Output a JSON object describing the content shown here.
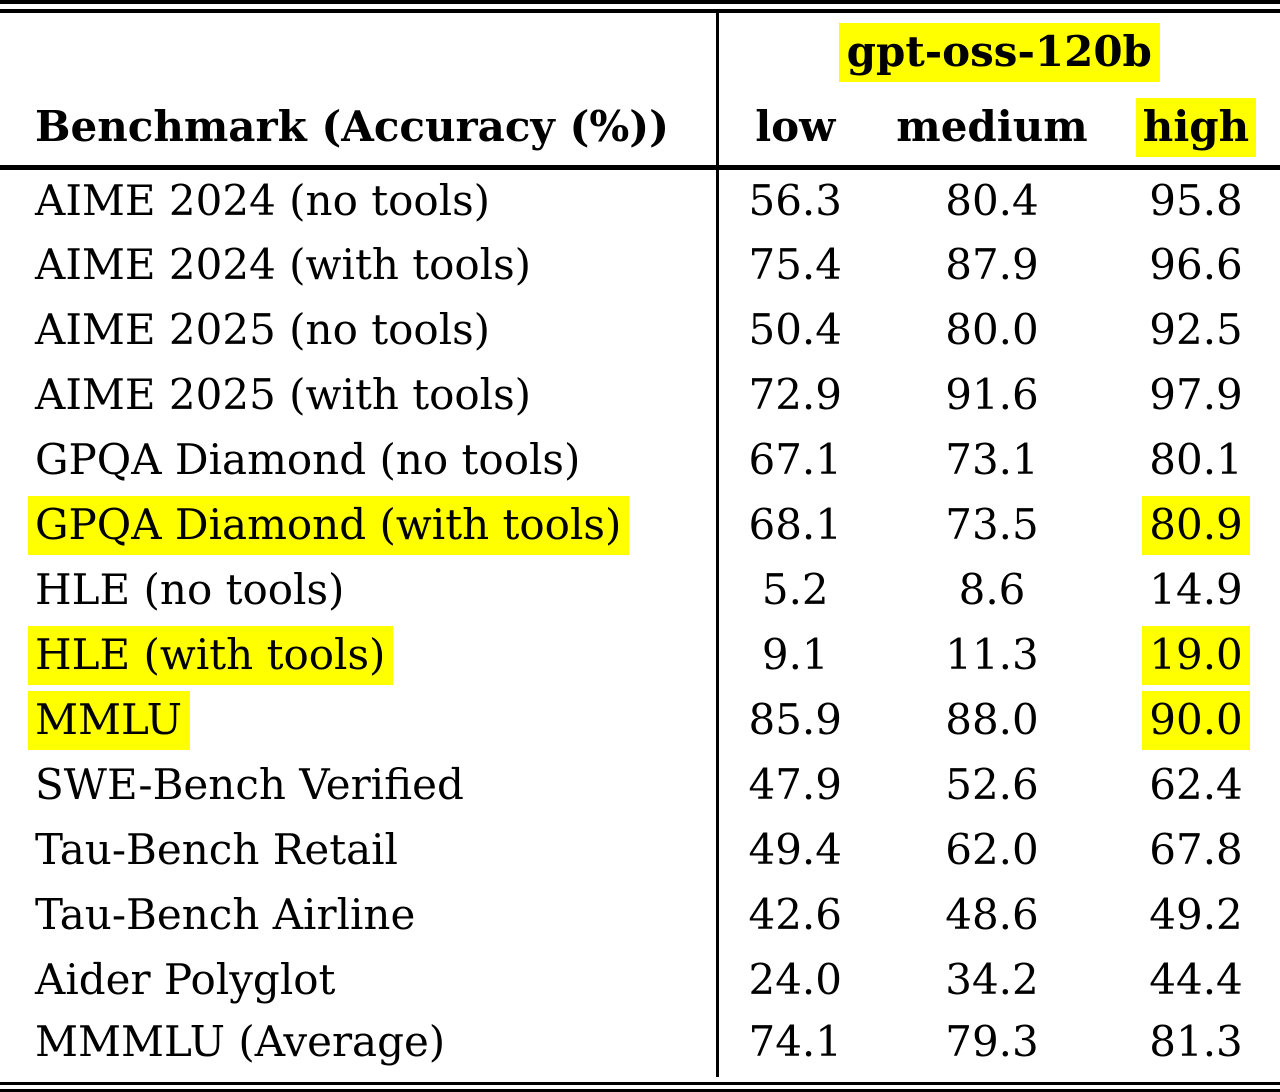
{
  "colors": {
    "highlight": "#ffff00",
    "text": "#000000",
    "background": "#ffffff"
  },
  "table": {
    "model_header": "gpt-oss-120b",
    "benchmark_header": "Benchmark (Accuracy (%))",
    "effort_columns": [
      {
        "label": "low",
        "highlighted": false
      },
      {
        "label": "medium",
        "highlighted": false
      },
      {
        "label": "high",
        "highlighted": true
      }
    ],
    "rows": [
      {
        "benchmark": "AIME 2024 (no tools)",
        "benchmark_highlighted": false,
        "low": "56.3",
        "medium": "80.4",
        "high": "95.8",
        "high_highlighted": false
      },
      {
        "benchmark": "AIME 2024 (with tools)",
        "benchmark_highlighted": false,
        "low": "75.4",
        "medium": "87.9",
        "high": "96.6",
        "high_highlighted": false
      },
      {
        "benchmark": "AIME 2025 (no tools)",
        "benchmark_highlighted": false,
        "low": "50.4",
        "medium": "80.0",
        "high": "92.5",
        "high_highlighted": false
      },
      {
        "benchmark": "AIME 2025 (with tools)",
        "benchmark_highlighted": false,
        "low": "72.9",
        "medium": "91.6",
        "high": "97.9",
        "high_highlighted": false
      },
      {
        "benchmark": "GPQA Diamond (no tools)",
        "benchmark_highlighted": false,
        "low": "67.1",
        "medium": "73.1",
        "high": "80.1",
        "high_highlighted": false
      },
      {
        "benchmark": "GPQA Diamond (with tools)",
        "benchmark_highlighted": true,
        "low": "68.1",
        "medium": "73.5",
        "high": "80.9",
        "high_highlighted": true
      },
      {
        "benchmark": "HLE (no tools)",
        "benchmark_highlighted": false,
        "low": "5.2",
        "medium": "8.6",
        "high": "14.9",
        "high_highlighted": false
      },
      {
        "benchmark": "HLE (with tools)",
        "benchmark_highlighted": true,
        "low": "9.1",
        "medium": "11.3",
        "high": "19.0",
        "high_highlighted": true
      },
      {
        "benchmark": "MMLU",
        "benchmark_highlighted": true,
        "low": "85.9",
        "medium": "88.0",
        "high": "90.0",
        "high_highlighted": true
      },
      {
        "benchmark": "SWE-Bench Verified",
        "benchmark_highlighted": false,
        "low": "47.9",
        "medium": "52.6",
        "high": "62.4",
        "high_highlighted": false
      },
      {
        "benchmark": "Tau-Bench Retail",
        "benchmark_highlighted": false,
        "low": "49.4",
        "medium": "62.0",
        "high": "67.8",
        "high_highlighted": false
      },
      {
        "benchmark": "Tau-Bench Airline",
        "benchmark_highlighted": false,
        "low": "42.6",
        "medium": "48.6",
        "high": "49.2",
        "high_highlighted": false
      },
      {
        "benchmark": "Aider Polyglot",
        "benchmark_highlighted": false,
        "low": "24.0",
        "medium": "34.2",
        "high": "44.4",
        "high_highlighted": false
      },
      {
        "benchmark": "MMMLU (Average)",
        "benchmark_highlighted": false,
        "low": "74.1",
        "medium": "79.3",
        "high": "81.3",
        "high_highlighted": false
      }
    ]
  }
}
